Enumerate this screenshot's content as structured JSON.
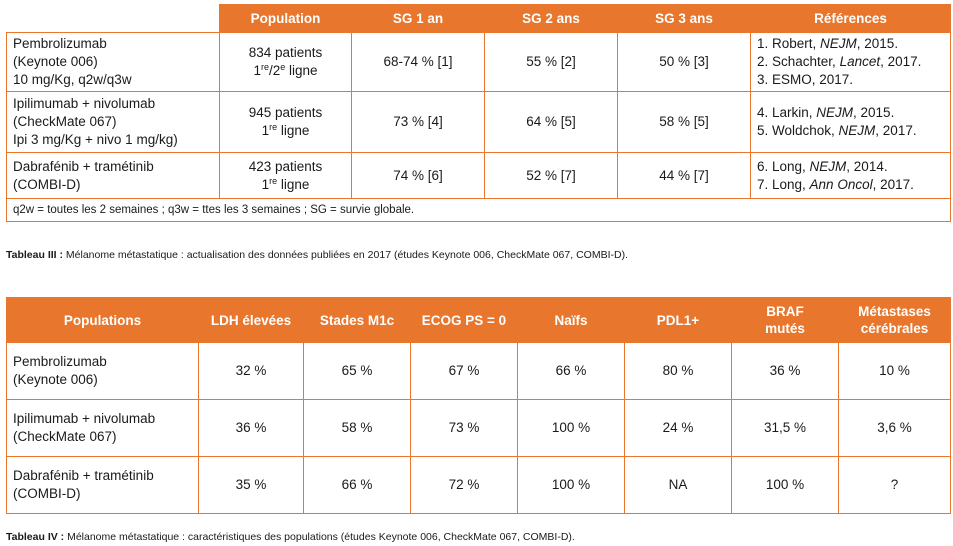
{
  "table3": {
    "headers": [
      "Population",
      "SG 1 an",
      "SG 2 ans",
      "SG 3 ans",
      "Références"
    ],
    "rows": [
      {
        "study_lines": [
          "Pembrolizumab",
          "(Keynote 006)",
          "10 mg/Kg, q2w/q3w"
        ],
        "population_count": "834 patients",
        "population_line_num1": "1",
        "population_line_sup1": "re",
        "population_line_sep": "/2",
        "population_line_sup2": "e",
        "population_line_rest": " ligne",
        "sg1": "68-74 % [1]",
        "sg2": "55 % [2]",
        "sg3": "50 % [3]",
        "refs": [
          {
            "pre": "1. Robert, ",
            "journal": "NEJM",
            "post": ", 2015."
          },
          {
            "pre": "2. Schachter, ",
            "journal": "Lancet",
            "post": ", 2017."
          },
          {
            "pre": "3. ESMO, 2017.",
            "journal": "",
            "post": ""
          }
        ]
      },
      {
        "study_lines": [
          "Ipilimumab + nivolumab",
          "(CheckMate 067)",
          "Ipi 3 mg/Kg + nivo 1 mg/kg)"
        ],
        "population_count": "945 patients",
        "population_line_num1": "1",
        "population_line_sup1": "re",
        "population_line_rest": " ligne",
        "sg1": "73 % [4]",
        "sg2": "64 % [5]",
        "sg3": "58 % [5]",
        "refs": [
          {
            "pre": "4. Larkin, ",
            "journal": "NEJM",
            "post": ", 2015."
          },
          {
            "pre": "5. Woldchok, ",
            "journal": "NEJM",
            "post": ", 2017."
          }
        ]
      },
      {
        "study_lines": [
          "Dabrafénib + tramétinib",
          "(COMBI-D)"
        ],
        "population_count": "423 patients",
        "population_line_num1": "1",
        "population_line_sup1": "re",
        "population_line_rest": " ligne",
        "sg1": "74 % [6]",
        "sg2": "52 % [7]",
        "sg3": "44 % [7]",
        "refs": [
          {
            "pre": "6. Long, ",
            "journal": "NEJM",
            "post": ", 2014."
          },
          {
            "pre": "7. Long, ",
            "journal": "Ann Oncol",
            "post": ", 2017."
          }
        ]
      }
    ],
    "footnote": "q2w = toutes les 2 semaines ; q3w = ttes les 3 semaines ; SG = survie globale.",
    "caption_label": "Tableau III :",
    "caption_text": " Mélanome métastatique : actualisation des données publiées en 2017 (études Keynote 006, CheckMate 067, COMBI-D)."
  },
  "table4": {
    "headers": [
      "Populations",
      "LDH élevées",
      "Stades M1c",
      "ECOG PS = 0",
      "Naïfs",
      "PDL1+",
      "BRAF mutés",
      "Métastases cérébrales"
    ],
    "header_lines": {
      "braf": [
        "BRAF",
        "mutés"
      ],
      "meta": [
        "Métastases",
        "cérébrales"
      ]
    },
    "rows": [
      {
        "study_lines": [
          "Pembrolizumab",
          "(Keynote 006)"
        ],
        "values": [
          "32 %",
          "65 %",
          "67 %",
          "66 %",
          "80 %",
          "36 %",
          "10 %"
        ]
      },
      {
        "study_lines": [
          "Ipilimumab + nivolumab",
          "(CheckMate 067)"
        ],
        "values": [
          "36 %",
          "58 %",
          "73 %",
          "100 %",
          "24 %",
          "31,5 %",
          "3,6 %"
        ]
      },
      {
        "study_lines": [
          "Dabrafénib + tramétinib",
          "(COMBI-D)"
        ],
        "values": [
          "35 %",
          "66 %",
          "72 %",
          "100 %",
          "NA",
          "100 %",
          "?"
        ]
      }
    ],
    "caption_label": "Tableau IV :",
    "caption_text": " Mélanome métastatique : caractéristiques des populations (études Keynote 006, CheckMate 067, COMBI-D)."
  },
  "colors": {
    "accent": "#e8762c",
    "header_text": "#ffffff"
  }
}
